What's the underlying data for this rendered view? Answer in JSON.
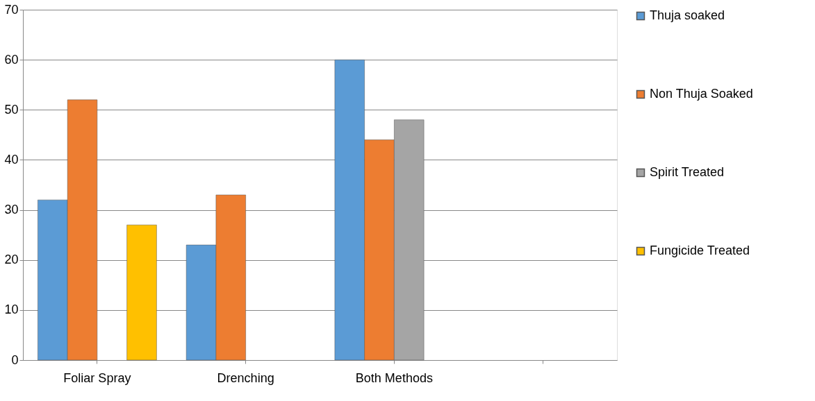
{
  "chart_data": {
    "type": "bar",
    "categories": [
      "Foliar Spray",
      "Drenching",
      "Both Methods",
      null
    ],
    "series": [
      {
        "name": "Thuja soaked",
        "color": "#5b9bd5",
        "values": [
          32,
          23,
          60,
          null
        ]
      },
      {
        "name": "Non Thuja Soaked",
        "color": "#ed7d31",
        "values": [
          52,
          33,
          44,
          null
        ]
      },
      {
        "name": "Spirit Treated",
        "color": "#a5a5a5",
        "values": [
          null,
          null,
          48,
          null
        ]
      },
      {
        "name": "Fungicide Treated",
        "color": "#ffc000",
        "values": [
          27,
          null,
          null,
          null
        ]
      }
    ],
    "ylim": [
      0,
      70
    ],
    "yticks": [
      0,
      10,
      20,
      30,
      40,
      50,
      60,
      70
    ],
    "grid": "y",
    "legend": "right"
  }
}
